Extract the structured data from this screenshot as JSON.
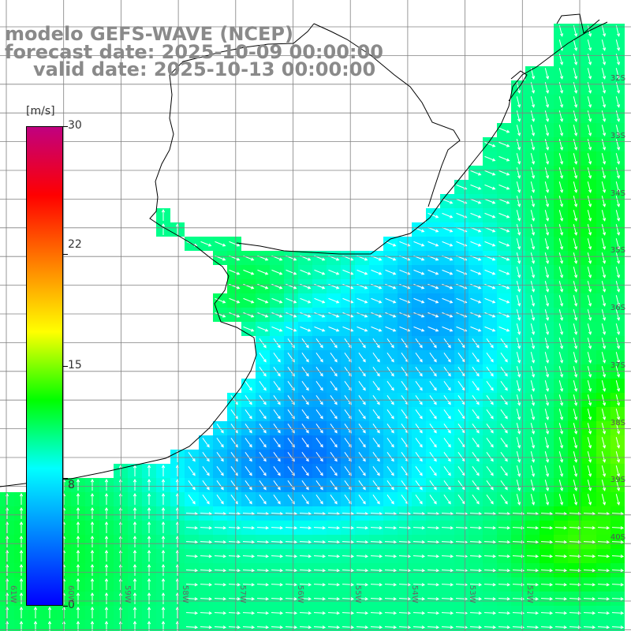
{
  "title": {
    "line1": "modelo GEFS-WAVE (NCEP)",
    "line2": "forecast date: 2025-10-09 00:00:00",
    "line3": "valid date: 2025-10-13 00:00:00"
  },
  "colorbar": {
    "unit": "[m/s]",
    "min": 0,
    "max": 30,
    "ticks": [
      "30",
      "22",
      "15",
      "8",
      "0"
    ],
    "tick_values": [
      30,
      22,
      15,
      8,
      0
    ],
    "colors": [
      "#0000ff",
      "#0080ff",
      "#00ffff",
      "#00ff00",
      "#ffff00",
      "#ff8000",
      "#ff0000",
      "#c00080"
    ]
  },
  "map": {
    "variable": "wind speed",
    "lat_labels": [
      "32S",
      "33S",
      "34S",
      "35S",
      "36S",
      "37S",
      "38S",
      "39S",
      "40S"
    ],
    "lon_labels": [
      "61W",
      "60W",
      "59W",
      "58W",
      "57W",
      "56W",
      "55W",
      "54W",
      "53W",
      "52W"
    ],
    "land_color": "#ffffff",
    "grid_color": "#808080",
    "coast_color": "#000000"
  }
}
